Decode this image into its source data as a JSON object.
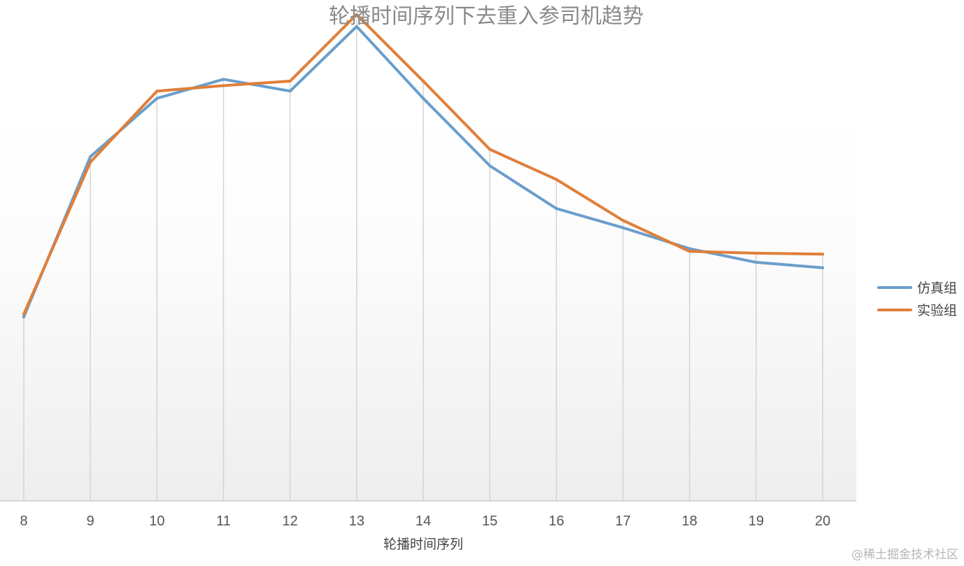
{
  "chart_data": {
    "type": "line",
    "title": "轮播时间序列下去重入参司机趋势",
    "xlabel": "轮播时间序列",
    "ylabel": "",
    "categories": [
      "8",
      "9",
      "10",
      "11",
      "12",
      "13",
      "14",
      "15",
      "16",
      "17",
      "18",
      "19",
      "20"
    ],
    "ylim": [
      0,
      550
    ],
    "grid": "vertical",
    "legend_position": "right",
    "series": [
      {
        "name": "仿真组",
        "color": "#6a9ecb",
        "values": [
          202,
          378,
          442,
          463,
          450,
          521,
          442,
          368,
          321,
          300,
          277,
          262,
          256
        ]
      },
      {
        "name": "实验组",
        "color": "#e07f3a",
        "values": [
          205,
          372,
          450,
          456,
          461,
          534,
          461,
          386,
          353,
          308,
          274,
          272,
          271
        ]
      }
    ]
  },
  "watermark": "@稀土掘金技术社区"
}
